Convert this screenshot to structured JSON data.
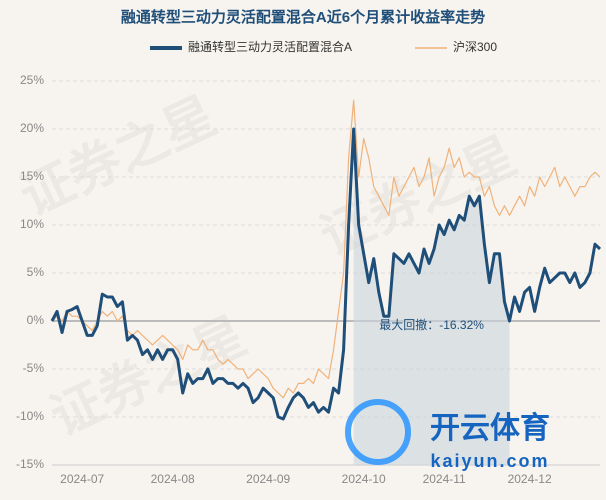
{
  "chart_data": {
    "type": "line",
    "title": "融通转型三动力灵活配置混合A近6个月累计收益率走势",
    "annotation": "最大回撤：-16.32%",
    "watermark": "证券之星",
    "logo_text": "开云体育",
    "logo_url": "kaiyun.com",
    "categories": [
      null,
      null,
      null,
      null,
      null,
      null,
      "2024-07",
      null,
      null,
      null,
      null,
      null,
      null,
      null,
      null,
      null,
      null,
      null,
      null,
      null,
      null,
      null,
      null,
      null,
      "2024-08",
      null,
      null,
      null,
      null,
      null,
      null,
      null,
      null,
      null,
      null,
      null,
      null,
      null,
      null,
      null,
      null,
      null,
      null,
      "2024-09",
      null,
      null,
      null,
      null,
      null,
      null,
      null,
      null,
      null,
      null,
      null,
      null,
      null,
      null,
      null,
      null,
      null,
      null,
      "2024-10",
      null,
      null,
      null,
      null,
      null,
      null,
      null,
      null,
      null,
      null,
      null,
      null,
      null,
      null,
      null,
      "2024-11",
      null,
      null,
      null,
      null,
      null,
      null,
      null,
      null,
      null,
      null,
      null,
      null,
      null,
      null,
      null,
      null,
      "2024-12",
      null,
      null,
      null,
      null,
      null,
      null,
      null,
      null,
      null,
      null,
      null,
      null,
      null,
      null
    ],
    "series": [
      {
        "name": "融通转型三动力灵活配置混合A",
        "color": "#1f4e79",
        "values": [
          0,
          1,
          -1.2,
          1,
          1.2,
          1.5,
          0,
          -1.5,
          -1.5,
          -0.5,
          2.8,
          2.5,
          2.5,
          1.5,
          2,
          -2,
          -1.5,
          -2,
          -3.5,
          -3,
          -4,
          -3,
          -4,
          -3,
          -3,
          -4,
          -7.5,
          -5.5,
          -6.5,
          -6,
          -6,
          -5,
          -6.5,
          -6,
          -6,
          -6.5,
          -6.5,
          -7,
          -6.5,
          -7,
          -8.5,
          -8,
          -7,
          -7.5,
          -8,
          -10,
          -10.2,
          -9,
          -8,
          -7.5,
          -8,
          -9,
          -8.5,
          -9.5,
          -9,
          -9.5,
          -7,
          -7.5,
          -3,
          10,
          20,
          10,
          7,
          4,
          6.5,
          3,
          0.5,
          0.5,
          7,
          6.5,
          6,
          7,
          6,
          5,
          7.5,
          6,
          7.5,
          10,
          9,
          10.5,
          9.5,
          11,
          10.5,
          13,
          12,
          13,
          8,
          4,
          7,
          7,
          2,
          0,
          2.5,
          1,
          3,
          3.5,
          1,
          3.5,
          5.5,
          4,
          4.5,
          5,
          5,
          4,
          5,
          3.5,
          4,
          5,
          8,
          7.5
        ]
      },
      {
        "name": "沪深300",
        "color": "#f0b27a",
        "values": [
          0,
          0.5,
          0,
          1,
          0.5,
          0.5,
          0,
          -0.5,
          -1,
          0,
          1,
          0.5,
          1,
          0,
          0.5,
          -1,
          -1.5,
          -1,
          -1.5,
          -2,
          -2.5,
          -2,
          -1.5,
          -2,
          -2.5,
          -3,
          -4,
          -2.5,
          -3,
          -3,
          -2,
          -3,
          -3,
          -4,
          -4.5,
          -4,
          -4.5,
          -5,
          -5,
          -6,
          -5.5,
          -5,
          -5.5,
          -6,
          -7,
          -7.5,
          -8,
          -7,
          -7.5,
          -6.5,
          -6.5,
          -6,
          -6.5,
          -5,
          -5.5,
          -6,
          -3,
          1,
          5,
          17,
          23,
          15,
          19,
          17,
          14,
          13,
          12,
          11,
          15,
          13,
          14,
          15,
          16,
          14,
          15,
          17,
          13,
          15,
          16,
          18,
          16,
          17,
          15,
          15.5,
          15,
          15,
          13,
          14,
          12,
          11,
          12,
          11,
          12,
          13,
          12,
          14,
          13,
          15,
          14,
          15,
          16,
          14,
          15,
          14,
          13,
          14,
          14,
          15,
          15.5,
          15
        ]
      }
    ],
    "ylim": [
      -15,
      25
    ],
    "yticks": [
      {
        "value": -15,
        "label": "-15%"
      },
      {
        "value": -10,
        "label": "-10%"
      },
      {
        "value": -5,
        "label": "-5%"
      },
      {
        "value": 0,
        "label": "0%"
      },
      {
        "value": 5,
        "label": "5%"
      },
      {
        "value": 10,
        "label": "10%"
      },
      {
        "value": 15,
        "label": "15%"
      },
      {
        "value": 20,
        "label": "20%"
      },
      {
        "value": 25,
        "label": "25%"
      }
    ],
    "grid": true
  }
}
